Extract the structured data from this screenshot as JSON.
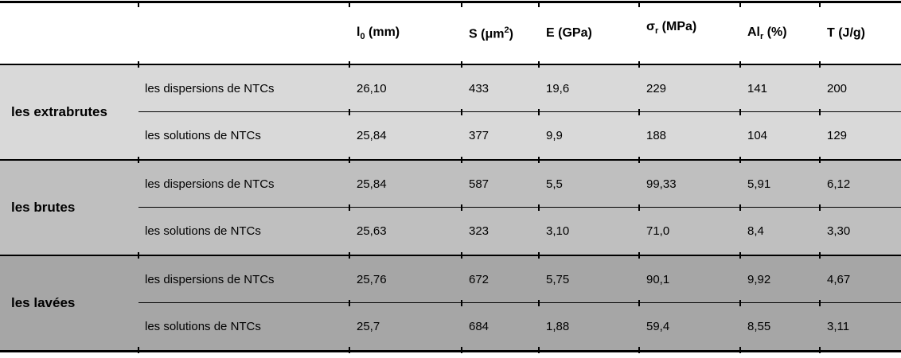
{
  "table": {
    "colors": {
      "border": "#000000",
      "header_bg": "#ffffff"
    },
    "header": {
      "columns": [
        {
          "pre": "l",
          "sub": "0",
          "sup": "",
          "post": " (mm)"
        },
        {
          "pre": "S (μm",
          "sub": "",
          "sup": "2",
          "post": ")"
        },
        {
          "pre": "E (GPa)",
          "sub": "",
          "sup": "",
          "post": ""
        },
        {
          "pre": "σ",
          "sub": "r",
          "sup": "",
          "post": " (MPa)"
        },
        {
          "pre": "Al",
          "sub": "r",
          "sup": "",
          "post": " (%)"
        },
        {
          "pre": "T (J/g)",
          "sub": "",
          "sup": "",
          "post": ""
        }
      ]
    },
    "groups": [
      {
        "label": "les extrabrutes",
        "bg": "#d9d9d9",
        "rows": [
          {
            "label": "les dispersions de NTCs",
            "values": [
              "26,10",
              "433",
              "19,6",
              "229",
              "141",
              "200"
            ]
          },
          {
            "label": "les solutions de NTCs",
            "values": [
              "25,84",
              "377",
              "9,9",
              "188",
              "104",
              "129"
            ]
          }
        ]
      },
      {
        "label": "les brutes",
        "bg": "#bfbfbf",
        "rows": [
          {
            "label": "les dispersions de NTCs",
            "values": [
              "25,84",
              "587",
              "5,5",
              "99,33",
              "5,91",
              "6,12"
            ]
          },
          {
            "label": "les solutions de NTCs",
            "values": [
              "25,63",
              "323",
              "3,10",
              "71,0",
              "8,4",
              "3,30"
            ]
          }
        ]
      },
      {
        "label": "les lavées",
        "bg": "#a6a6a6",
        "rows": [
          {
            "label": "les dispersions de NTCs",
            "values": [
              "25,76",
              "672",
              "5,75",
              "90,1",
              "9,92",
              "4,67"
            ]
          },
          {
            "label": "les solutions de NTCs",
            "values": [
              "25,7",
              "684",
              "1,88",
              "59,4",
              "8,55",
              "3,11"
            ]
          }
        ]
      }
    ]
  }
}
